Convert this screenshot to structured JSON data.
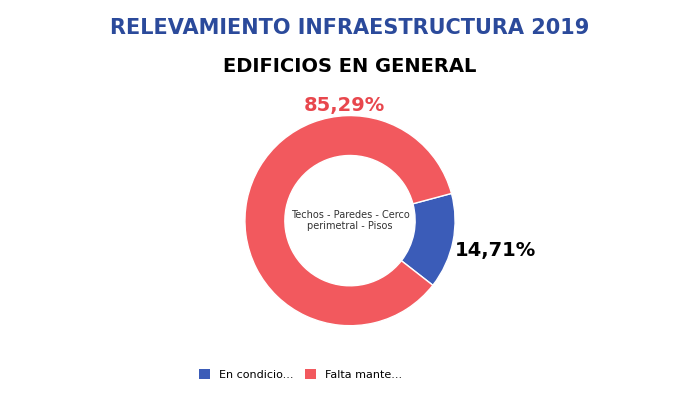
{
  "chart_data": {
    "type": "donut",
    "title": "RELEVAMIENTO INFRAESTRUCTURA 2019",
    "subtitle": "EDIFICIOS EN GENERAL",
    "annotation": "Techos - Paredes - Cerco perimetral - Pisos",
    "categories": [
      "En condicio...",
      "Falta mante..."
    ],
    "values": [
      14.71,
      85.29
    ],
    "value_labels": [
      "14,71%",
      "85,29%"
    ],
    "colors": [
      "#3b5cb8",
      "#f2595e"
    ],
    "legend": "lower left",
    "data_labels": true
  }
}
